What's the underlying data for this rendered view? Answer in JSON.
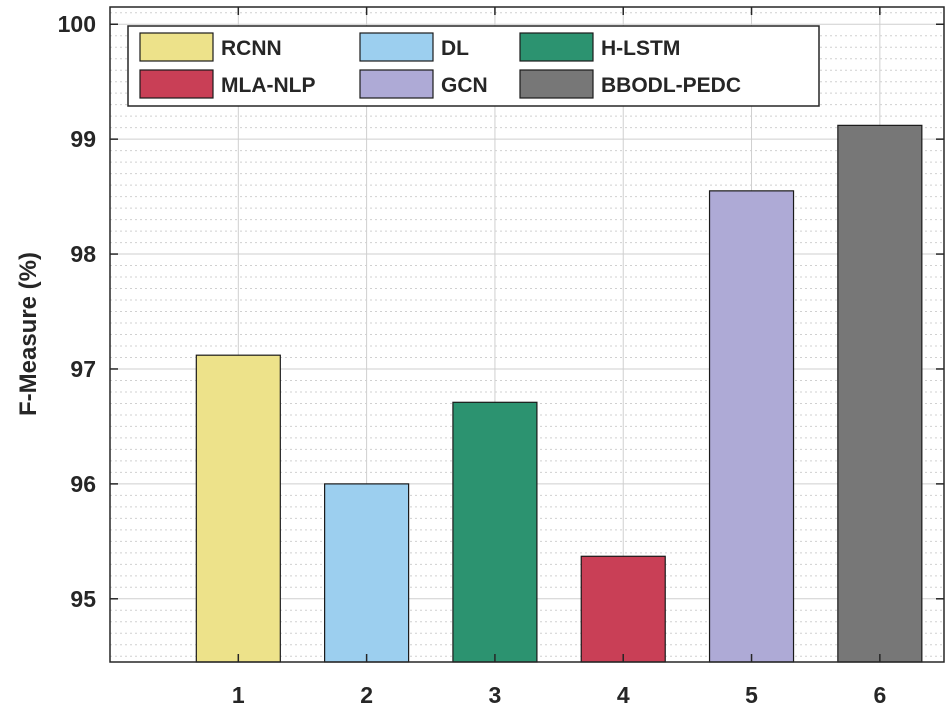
{
  "chart_data": {
    "type": "bar",
    "categories": [
      "1",
      "2",
      "3",
      "4",
      "5",
      "6"
    ],
    "values": [
      97.12,
      96.0,
      96.71,
      95.37,
      98.55,
      99.12
    ],
    "xlabel": "",
    "ylabel": "F-Measure (%)",
    "ylim": [
      94.45,
      100.15
    ],
    "yticks": [
      95,
      96,
      97,
      98,
      99,
      100
    ],
    "grid": true,
    "minor_grid": true,
    "legend": {
      "placement": "top-left",
      "columns": 3,
      "entries": [
        "RCNN",
        "DL",
        "H-LSTM",
        "MLA-NLP",
        "GCN",
        "BBODL-PEDC"
      ]
    },
    "colors": [
      "#ede28a",
      "#9ccfef",
      "#2c9370",
      "#c93f56",
      "#aeaad6",
      "#777777"
    ]
  }
}
